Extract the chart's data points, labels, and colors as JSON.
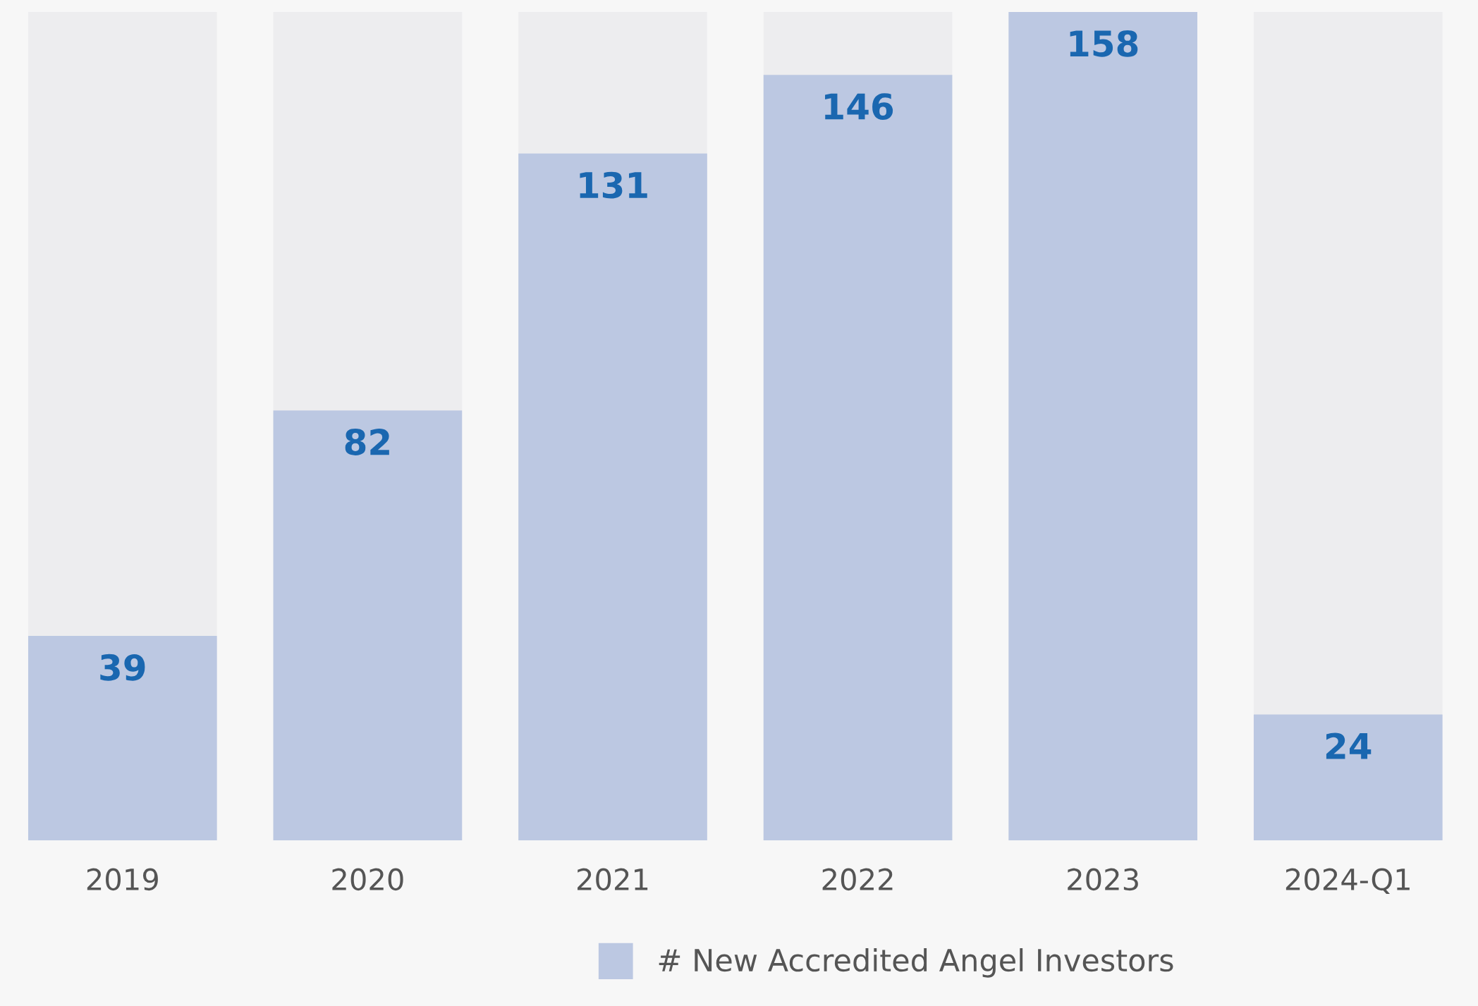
{
  "chart_data": {
    "type": "bar",
    "categories": [
      "2019",
      "2020",
      "2021",
      "2022",
      "2023",
      "2024-Q1"
    ],
    "series": [
      {
        "name": "# New Accredited Angel Investors",
        "color": "#bcc8e2",
        "values": [
          39,
          82,
          131,
          146,
          158,
          24
        ]
      }
    ],
    "ylim": [
      0,
      158
    ],
    "tick_labels": "x",
    "data_labels": true,
    "grid": false,
    "legend": "bottom"
  }
}
